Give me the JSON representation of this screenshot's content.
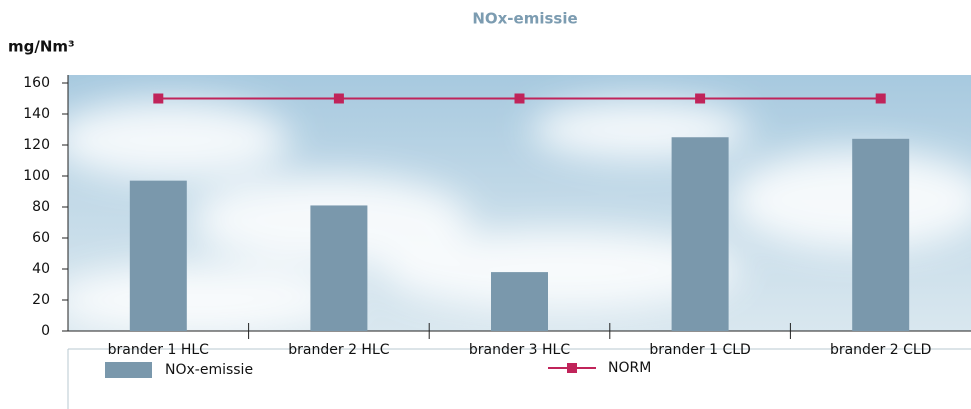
{
  "chart_data": {
    "type": "bar",
    "title": "NOx-emissie",
    "y_label": "mg/Nm³",
    "categories": [
      "brander 1 HLC",
      "brander 2 HLC",
      "brander 3 HLC",
      "brander 1 CLD",
      "brander 2 CLD"
    ],
    "series": [
      {
        "name": "NOx-emissie",
        "type": "bar",
        "color": "#7a98ac",
        "values": [
          97,
          81,
          38,
          125,
          124
        ]
      },
      {
        "name": "NORM",
        "type": "line",
        "color": "#c0245a",
        "values": [
          150,
          150,
          150,
          150,
          150
        ]
      }
    ],
    "ylim": [
      0,
      160
    ],
    "yticks": [
      0,
      20,
      40,
      60,
      80,
      100,
      120,
      140,
      160
    ],
    "legend": "bottom"
  }
}
